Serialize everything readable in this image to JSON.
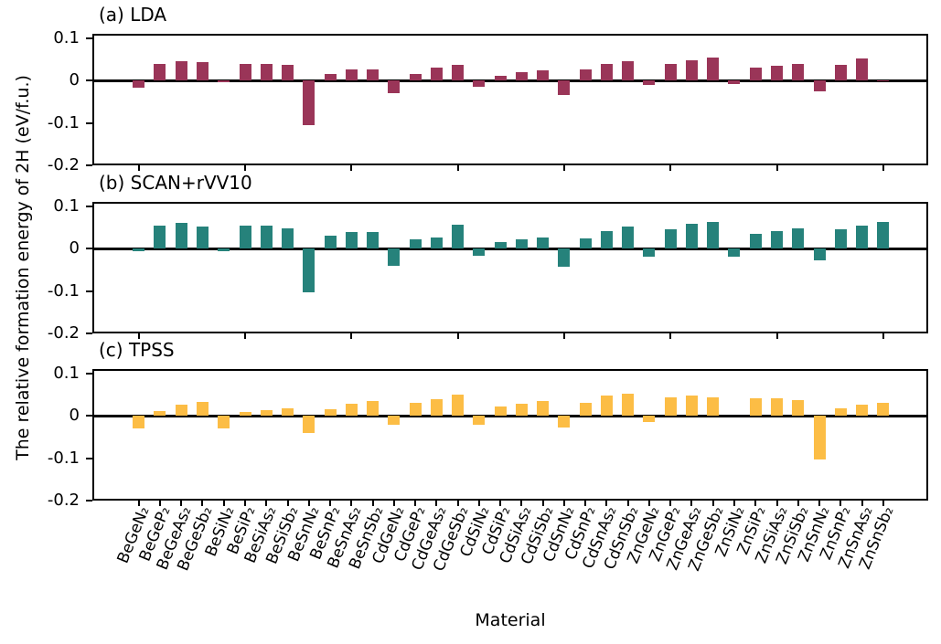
{
  "figure": {
    "ylabel": "The relative formation energy of 2H (eV/f.u.)",
    "xlabel": "Material"
  },
  "chart_data": [
    {
      "type": "bar",
      "title": "(a) LDA",
      "color": "#9a3558",
      "ylim": [
        -0.2,
        0.11
      ],
      "yticks": [
        0.1,
        0,
        -0.1,
        -0.2
      ],
      "grid": false,
      "legend": "none",
      "categories": [
        "BeGeN₂",
        "BeGeP₂",
        "BeGeAs₂",
        "BeGeSb₂",
        "BeSiN₂",
        "BeSiP₂",
        "BeSiAs₂",
        "BeSiSb₂",
        "BeSnN₂",
        "BeSnP₂",
        "BeSnAs₂",
        "BeSnSb₂",
        "CdGeN₂",
        "CdGeP₂",
        "CdGeAs₂",
        "CdGeSb₂",
        "CdSiN₂",
        "CdSiP₂",
        "CdSiAs₂",
        "CdSiSb₂",
        "CdSnN₂",
        "CdSnP₂",
        "CdSnAs₂",
        "CdSnSb₂",
        "ZnGeN₂",
        "ZnGeP₂",
        "ZnGeAs₂",
        "ZnGeSb₂",
        "ZnSiN₂",
        "ZnSiP₂",
        "ZnSiAs₂",
        "ZnSiSb₂",
        "ZnSnN₂",
        "ZnSnP₂",
        "ZnSnAs₂",
        "ZnSnSb₂"
      ],
      "values": [
        -0.016,
        0.04,
        0.046,
        0.044,
        -0.005,
        0.038,
        0.04,
        0.036,
        -0.105,
        0.016,
        0.026,
        0.026,
        -0.031,
        0.016,
        0.031,
        0.037,
        -0.014,
        0.012,
        0.019,
        0.024,
        -0.034,
        0.026,
        0.039,
        0.046,
        -0.011,
        0.038,
        0.048,
        0.054,
        -0.008,
        0.03,
        0.035,
        0.04,
        -0.025,
        0.037,
        0.051,
        -0.003
      ]
    },
    {
      "type": "bar",
      "title": "(b) SCAN+rVV10",
      "color": "#26827b",
      "ylim": [
        -0.2,
        0.11
      ],
      "yticks": [
        0.1,
        0,
        -0.1,
        -0.2
      ],
      "grid": false,
      "legend": "none",
      "categories": [
        "BeGeN₂",
        "BeGeP₂",
        "BeGeAs₂",
        "BeGeSb₂",
        "BeSiN₂",
        "BeSiP₂",
        "BeSiAs₂",
        "BeSiSb₂",
        "BeSnN₂",
        "BeSnP₂",
        "BeSnAs₂",
        "BeSnSb₂",
        "CdGeN₂",
        "CdGeP₂",
        "CdGeAs₂",
        "CdGeSb₂",
        "CdSiN₂",
        "CdSiP₂",
        "CdSiAs₂",
        "CdSiSb₂",
        "CdSnN₂",
        "CdSnP₂",
        "CdSnAs₂",
        "CdSnSb₂",
        "ZnGeN₂",
        "ZnGeP₂",
        "ZnGeAs₂",
        "ZnGeSb₂",
        "ZnSiN₂",
        "ZnSiP₂",
        "ZnSiAs₂",
        "ZnSiSb₂",
        "ZnSnN₂",
        "ZnSnP₂",
        "ZnSnAs₂",
        "ZnSnSb₂"
      ],
      "values": [
        -0.007,
        0.055,
        0.06,
        0.051,
        -0.007,
        0.055,
        0.054,
        0.048,
        -0.104,
        0.031,
        0.04,
        0.04,
        -0.04,
        0.021,
        0.026,
        0.056,
        -0.018,
        0.016,
        0.022,
        0.025,
        -0.043,
        0.023,
        0.041,
        0.052,
        -0.02,
        0.046,
        0.058,
        0.062,
        -0.02,
        0.035,
        0.041,
        0.047,
        -0.027,
        0.045,
        0.054,
        0.063
      ]
    },
    {
      "type": "bar",
      "title": "(c) TPSS",
      "color": "#fcbd45",
      "ylim": [
        -0.2,
        0.11
      ],
      "yticks": [
        0.1,
        0,
        -0.1,
        -0.2
      ],
      "grid": false,
      "legend": "none",
      "categories": [
        "BeGeN₂",
        "BeGeP₂",
        "BeGeAs₂",
        "BeGeSb₂",
        "BeSiN₂",
        "BeSiP₂",
        "BeSiAs₂",
        "BeSiSb₂",
        "BeSnN₂",
        "BeSnP₂",
        "BeSnAs₂",
        "BeSnSb₂",
        "CdGeN₂",
        "CdGeP₂",
        "CdGeAs₂",
        "CdGeSb₂",
        "CdSiN₂",
        "CdSiP₂",
        "CdSiAs₂",
        "CdSiSb₂",
        "CdSnN₂",
        "CdSnP₂",
        "CdSnAs₂",
        "CdSnSb₂",
        "ZnGeN₂",
        "ZnGeP₂",
        "ZnGeAs₂",
        "ZnGeSb₂",
        "ZnSiN₂",
        "ZnSiP₂",
        "ZnSiAs₂",
        "ZnSiSb₂",
        "ZnSnN₂",
        "ZnSnP₂",
        "ZnSnAs₂",
        "ZnSnSb₂"
      ],
      "values": [
        -0.03,
        0.012,
        0.025,
        0.033,
        -0.031,
        0.008,
        0.014,
        0.018,
        -0.04,
        0.016,
        0.029,
        0.035,
        -0.021,
        0.03,
        0.04,
        0.05,
        -0.021,
        0.021,
        0.028,
        0.035,
        -0.027,
        0.031,
        0.047,
        0.051,
        -0.015,
        0.043,
        0.047,
        0.043,
        0.0,
        0.042,
        0.041,
        0.036,
        -0.104,
        0.017,
        0.025,
        0.03
      ]
    }
  ]
}
